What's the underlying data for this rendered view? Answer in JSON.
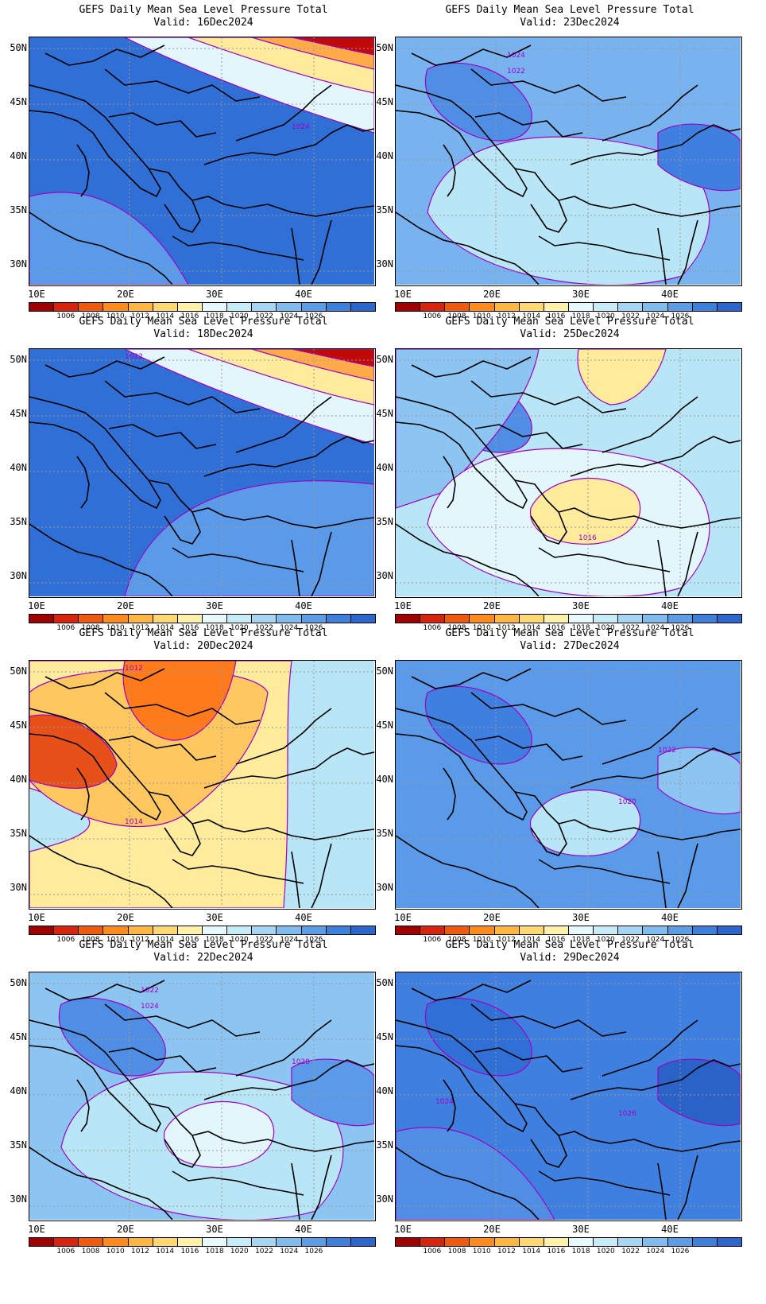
{
  "panels": [
    {
      "title": "GEFS Daily Mean Sea Level Pressure Total",
      "valid": "Valid: 16Dec2024",
      "base": "#2f6fd6",
      "regions": [
        {
          "shape": "blob-sw",
          "color": "#5a9ae8"
        },
        {
          "shape": "band-ne",
          "color": "#e2f6fb"
        },
        {
          "shape": "band-ne2",
          "color": "#ffeb9c"
        },
        {
          "shape": "band-ne3",
          "color": "#ffab4a"
        },
        {
          "shape": "corner-ne",
          "color": "#c00a0a"
        }
      ],
      "contour_labels": [
        {
          "text": "1024",
          "pos": "c"
        }
      ]
    },
    {
      "title": "GEFS Daily Mean Sea Level Pressure Total",
      "valid": "Valid: 23Dec2024",
      "base": "#78b3f0",
      "regions": [
        {
          "shape": "blob-c",
          "color": "#b8e6f6"
        },
        {
          "shape": "blob-nw",
          "color": "#4f8ee4"
        },
        {
          "shape": "blob-e",
          "color": "#3f7fe0"
        }
      ],
      "contour_labels": [
        {
          "text": "1024",
          "pos": "n"
        },
        {
          "text": "1022",
          "pos": "n2"
        }
      ]
    },
    {
      "title": "GEFS Daily Mean Sea Level Pressure Total",
      "valid": "Valid: 18Dec2024",
      "base": "#2f6fd6",
      "regions": [
        {
          "shape": "blob-se",
          "color": "#5a9ae8"
        },
        {
          "shape": "band-ne",
          "color": "#e2f6fb"
        },
        {
          "shape": "band-ne2",
          "color": "#ffeb9c"
        },
        {
          "shape": "band-ne3",
          "color": "#ffab4a"
        },
        {
          "shape": "corner-ne",
          "color": "#c00a0a"
        }
      ],
      "contour_labels": [
        {
          "text": "1022",
          "pos": "nw"
        }
      ]
    },
    {
      "title": "GEFS Daily Mean Sea Level Pressure Total",
      "valid": "Valid: 25Dec2024",
      "base": "#b8e6f6",
      "regions": [
        {
          "shape": "blob-nw",
          "color": "#4f8ee4"
        },
        {
          "shape": "blob-w",
          "color": "#8cc4f2"
        },
        {
          "shape": "blob-c",
          "color": "#e2f6fb"
        },
        {
          "shape": "blob-cs",
          "color": "#ffeb9c"
        },
        {
          "shape": "blob-n",
          "color": "#ffeb9c"
        }
      ],
      "contour_labels": [
        {
          "text": "1016",
          "pos": "s"
        }
      ]
    },
    {
      "title": "GEFS Daily Mean Sea Level Pressure Total",
      "valid": "Valid: 20Dec2024",
      "base": "#b8e6f6",
      "regions": [
        {
          "shape": "blob-big",
          "color": "#ffeb9c"
        },
        {
          "shape": "blob-mid",
          "color": "#ffc760"
        },
        {
          "shape": "blob-nc",
          "color": "#ff7a1a"
        },
        {
          "shape": "blob-w2",
          "color": "#e8501a"
        }
      ],
      "contour_labels": [
        {
          "text": "1012",
          "pos": "nw"
        },
        {
          "text": "1014",
          "pos": "sw"
        }
      ]
    },
    {
      "title": "GEFS Daily Mean Sea Level Pressure Total",
      "valid": "Valid: 27Dec2024",
      "base": "#5a9ae8",
      "regions": [
        {
          "shape": "blob-nw",
          "color": "#3f7fe0"
        },
        {
          "shape": "blob-e",
          "color": "#8cc4f2"
        },
        {
          "shape": "blob-cs",
          "color": "#b8e6f6"
        }
      ],
      "contour_labels": [
        {
          "text": "1022",
          "pos": "c"
        },
        {
          "text": "1020",
          "pos": "e"
        }
      ]
    },
    {
      "title": "GEFS Daily Mean Sea Level Pressure Total",
      "valid": "Valid: 22Dec2024",
      "base": "#8cc4f2",
      "regions": [
        {
          "shape": "blob-nw",
          "color": "#4f8ee4"
        },
        {
          "shape": "blob-c",
          "color": "#b8e6f6"
        },
        {
          "shape": "blob-cs",
          "color": "#e2f6fb"
        },
        {
          "shape": "blob-e",
          "color": "#5a9ae8"
        }
      ],
      "contour_labels": [
        {
          "text": "1022",
          "pos": "n"
        },
        {
          "text": "1024",
          "pos": "n2"
        },
        {
          "text": "1020",
          "pos": "c"
        }
      ]
    },
    {
      "title": "GEFS Daily Mean Sea Level Pressure Total",
      "valid": "Valid: 29Dec2024",
      "base": "#3f7fe0",
      "regions": [
        {
          "shape": "blob-nw",
          "color": "#2f6fd6"
        },
        {
          "shape": "blob-e",
          "color": "#2a62c8"
        },
        {
          "shape": "blob-sw",
          "color": "#4f8ee4"
        }
      ],
      "contour_labels": [
        {
          "text": "1024",
          "pos": "w"
        },
        {
          "text": "1026",
          "pos": "e"
        }
      ]
    }
  ],
  "y_ticks": [
    "50N",
    "45N",
    "40N",
    "35N",
    "30N"
  ],
  "x_ticks": [
    "10E",
    "20E",
    "30E",
    "40E"
  ],
  "colorbar": {
    "colors": [
      "#a00000",
      "#d8240c",
      "#f05a0c",
      "#ff8c1a",
      "#ffb740",
      "#ffd870",
      "#fff1a8",
      "#e6f8fc",
      "#c6ecf8",
      "#a6d6f4",
      "#80bcee",
      "#5c9ee6",
      "#3c80dc",
      "#2a66cc"
    ],
    "labels": [
      "1006",
      "1008",
      "1010",
      "1012",
      "1014",
      "1016",
      "1018",
      "1020",
      "1022",
      "1024",
      "1026"
    ]
  }
}
